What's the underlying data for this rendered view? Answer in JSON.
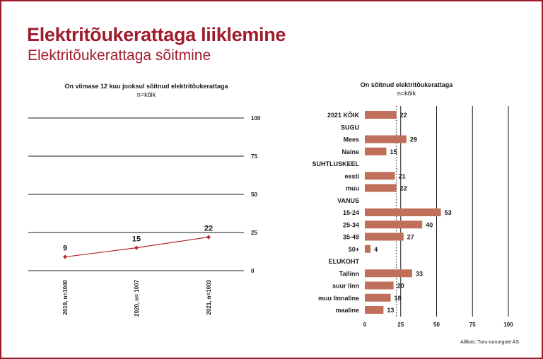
{
  "header": {
    "title": "Elektritõukerattaga liiklemine",
    "subtitle": "Elektritõukerattaga sõitmine"
  },
  "source": "Allikas: Turu-uurungute AS",
  "colors": {
    "accent": "#a01c2c",
    "line": "#b0262f",
    "bar": "#c0705a"
  },
  "chart_data": [
    {
      "type": "line",
      "title": "On viimase 12 kuu jooksul sõitnud elektritõukerattaga",
      "subtitle": "n=kõik",
      "categories": [
        "2019, n=1040",
        "2020, n= 1007",
        "2021, n=1003"
      ],
      "series": [
        {
          "values": [
            9,
            15,
            22
          ]
        }
      ],
      "yticks": [
        0,
        25,
        50,
        75,
        100
      ],
      "ylim": [
        0,
        100
      ],
      "y_axis_side": "right",
      "grid": true
    },
    {
      "type": "bar",
      "orientation": "horizontal",
      "title": "On sõitnud elektritõukerattaga",
      "subtitle": "n=kõik",
      "rows": [
        {
          "label": "2021 KÕIK",
          "value": 22
        },
        {
          "label": "SUGU",
          "value": null
        },
        {
          "label": "Mees",
          "value": 29
        },
        {
          "label": "Naine",
          "value": 15
        },
        {
          "label": "SUHTLUSKEEL",
          "value": null
        },
        {
          "label": "eesti",
          "value": 21
        },
        {
          "label": "muu",
          "value": 22
        },
        {
          "label": "VANUS",
          "value": null
        },
        {
          "label": "15-24",
          "value": 53
        },
        {
          "label": "25-34",
          "value": 40
        },
        {
          "label": "35-49",
          "value": 27
        },
        {
          "label": "50+",
          "value": 4
        },
        {
          "label": "ELUKOHT",
          "value": null
        },
        {
          "label": "Tallinn",
          "value": 33
        },
        {
          "label": "suur linn",
          "value": 20
        },
        {
          "label": "muu linnaline",
          "value": 18
        },
        {
          "label": "maaline",
          "value": 13
        }
      ],
      "xticks": [
        0,
        25,
        50,
        75,
        100
      ],
      "xlim": [
        0,
        100
      ],
      "reference_line": 22,
      "grid": true
    }
  ]
}
